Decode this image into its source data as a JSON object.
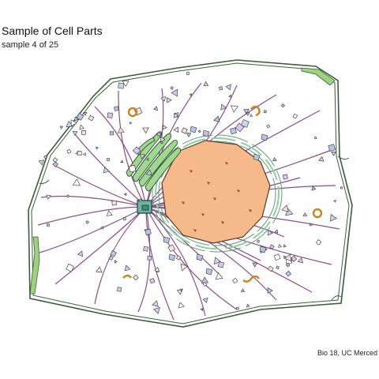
{
  "header": {
    "title": "Sample of Cell Parts",
    "subtitle": "sample 4 of 25"
  },
  "footer": {
    "caption": "Bio 18, UC Merced"
  },
  "colors": {
    "background": "#ffffff",
    "cell_outline": "#3b5d3b",
    "cell_wall_green": "#9ed27f",
    "nucleus_fill": "#f5b98a",
    "nucleus_outline": "#5a3a2a",
    "endoplasmic_reticulum": "#8fd0a0",
    "golgi": "#9fd890",
    "centrosome": "#6ab4a0",
    "microtubule": "#8a4f86",
    "vesicle_blue": "#b8c4e4",
    "mitochondria": "#c8851c"
  },
  "parts": [
    {
      "name": "cell-membrane"
    },
    {
      "name": "nucleus"
    },
    {
      "name": "endoplasmic-reticulum"
    },
    {
      "name": "golgi-apparatus"
    },
    {
      "name": "centrosome"
    },
    {
      "name": "microtubules"
    },
    {
      "name": "vesicles"
    },
    {
      "name": "mitochondria"
    }
  ]
}
